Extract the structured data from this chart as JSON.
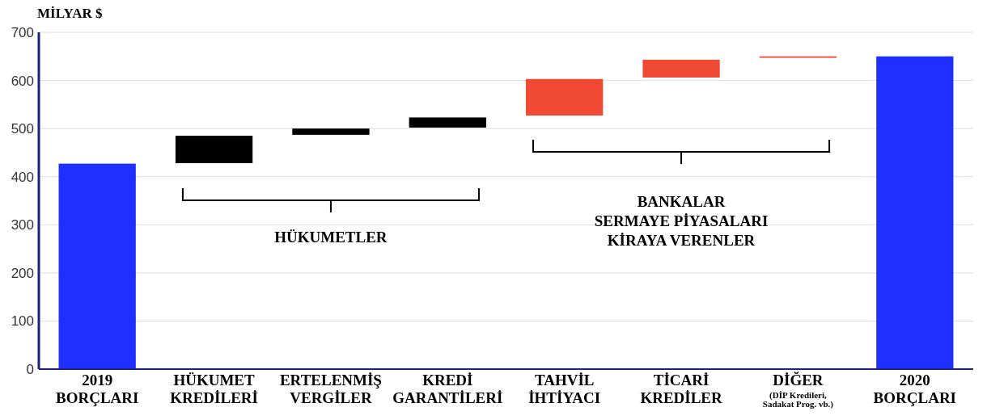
{
  "chart_data": {
    "type": "bar",
    "ylabel": "MİLYAR $",
    "categories": [
      "2019\nBORÇLARI",
      "HÜKUMET\nKREDİLERİ",
      "ERTELENMİŞ\nVERGİLER",
      "KREDİ\nGARANTİLERİ",
      "TAHVİL\nİHTİYACI",
      "TİCARİ\nKREDİLER",
      "DİĞER\n(DİP Kredileri,\nSadakat Prog. vb.)",
      "2020\nBORÇLARI"
    ],
    "values": [
      427,
      57,
      13,
      21,
      76,
      37,
      3,
      650
    ],
    "base": [
      0,
      428,
      487,
      502,
      527,
      606,
      647,
      0
    ],
    "colors": [
      "#1f2fff",
      "#000000",
      "#000000",
      "#000000",
      "#f04a35",
      "#f04a35",
      "#f04a35",
      "#1f2fff"
    ],
    "ylim": [
      0,
      700
    ],
    "yticks": [
      0,
      100,
      200,
      300,
      400,
      500,
      600,
      700
    ],
    "grid": "y",
    "annotations": [
      "HÜKUMETLER",
      "BANKALAR\nSERMAYE PİYASALARI\nKİRAYA VERENLER"
    ]
  }
}
